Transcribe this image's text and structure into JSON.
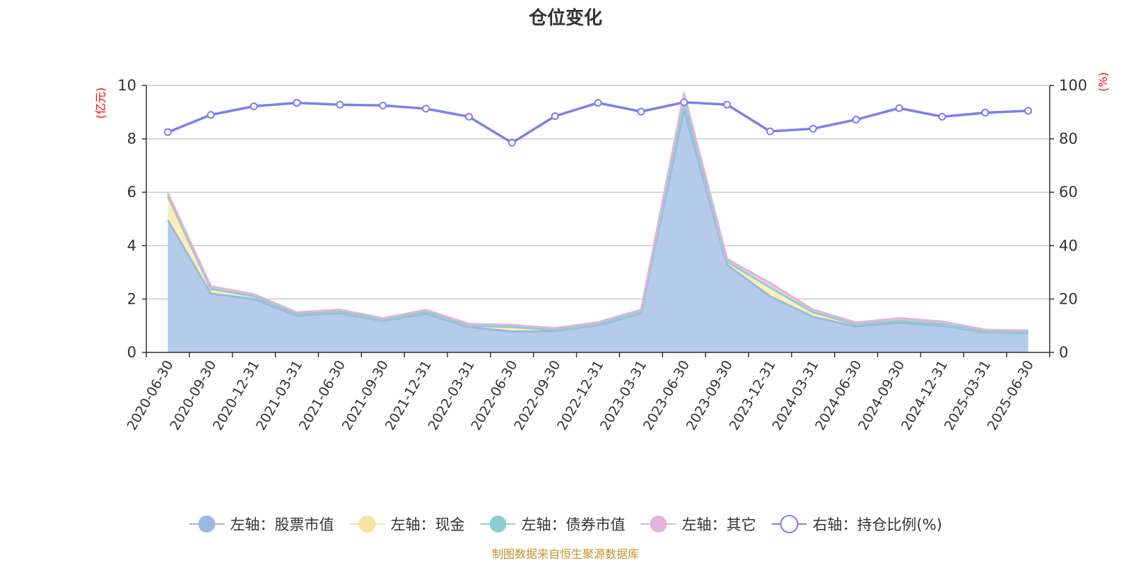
{
  "chart_data": {
    "type": "area",
    "title": "仓位变化",
    "left_axis_unit": "(亿元)",
    "right_axis_unit": "(%)",
    "source": "制图数据来自恒生聚源数据库",
    "x": [
      "2020-06-30",
      "2020-09-30",
      "2020-12-31",
      "2021-03-31",
      "2021-06-30",
      "2021-09-30",
      "2021-12-31",
      "2022-03-31",
      "2022-06-30",
      "2022-09-30",
      "2022-12-31",
      "2023-03-31",
      "2023-06-30",
      "2023-09-30",
      "2023-12-31",
      "2024-03-31",
      "2024-06-30",
      "2024-09-30",
      "2024-12-31",
      "2025-03-31",
      "2025-06-30"
    ],
    "left_ylim": [
      0,
      10
    ],
    "left_yticks": [
      0,
      2,
      4,
      6,
      8,
      10
    ],
    "right_ylim": [
      0,
      100
    ],
    "right_yticks": [
      0,
      20,
      40,
      60,
      80,
      100
    ],
    "grid": true,
    "legend_position": "bottom",
    "series": [
      {
        "name": "左轴：股票市值",
        "axis": "left",
        "kind": "stacked-area",
        "color": "#9bb8e0",
        "fill": "#b4cbea",
        "values": [
          4.95,
          2.2,
          2.0,
          1.38,
          1.47,
          1.18,
          1.45,
          0.95,
          0.78,
          0.8,
          1.02,
          1.45,
          9.1,
          3.28,
          2.1,
          1.33,
          0.97,
          1.12,
          1.0,
          0.75,
          0.72
        ]
      },
      {
        "name": "左轴：现金",
        "axis": "left",
        "kind": "stacked-area",
        "color": "#f6e3a0",
        "fill": "#fbeeb8",
        "values": [
          0.9,
          0.18,
          0.1,
          0.05,
          0.06,
          0.04,
          0.06,
          0.05,
          0.17,
          0.05,
          0.05,
          0.05,
          0.3,
          0.12,
          0.33,
          0.17,
          0.08,
          0.06,
          0.06,
          0.04,
          0.04
        ]
      },
      {
        "name": "左轴：债券市值",
        "axis": "left",
        "kind": "stacked-area",
        "color": "#8ecfd0",
        "fill": "#b0e0e0",
        "values": [
          0,
          0,
          0,
          0,
          0,
          0,
          0,
          0,
          0,
          0,
          0,
          0,
          0,
          0,
          0,
          0,
          0,
          0,
          0,
          0,
          0
        ]
      },
      {
        "name": "左轴：其它",
        "axis": "left",
        "kind": "stacked-area",
        "color": "#e3b3d9",
        "fill": "#efcde8",
        "values": [
          0.12,
          0.1,
          0.08,
          0.07,
          0.07,
          0.06,
          0.08,
          0.07,
          0.08,
          0.06,
          0.06,
          0.1,
          0.3,
          0.1,
          0.17,
          0.1,
          0.07,
          0.1,
          0.1,
          0.06,
          0.06
        ]
      },
      {
        "name": "右轴：持仓比例(%)",
        "axis": "right",
        "kind": "line",
        "color": "#7b7ff0",
        "values": [
          82.5,
          89.0,
          92.2,
          93.5,
          92.8,
          92.5,
          91.3,
          88.3,
          78.5,
          88.5,
          93.5,
          90.2,
          93.7,
          92.8,
          82.8,
          83.8,
          87.2,
          91.5,
          88.3,
          89.8,
          90.5
        ]
      }
    ]
  }
}
